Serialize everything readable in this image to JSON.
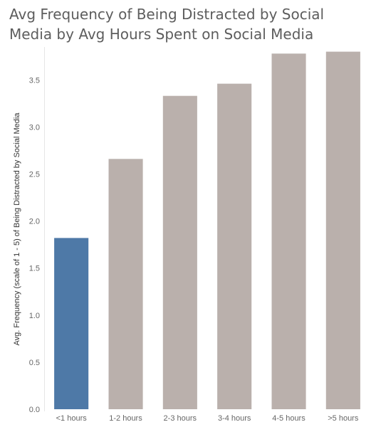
{
  "chart_data": {
    "type": "bar",
    "title": "Avg Frequency of Being Distracted by Social Media by Avg Hours Spent on Social Media",
    "xlabel": "",
    "ylabel": "Avg. Frequency (scale of 1 - 5) of Being Distracted by Social Media",
    "categories": [
      "<1 hours",
      "1-2 hours",
      "2-3 hours",
      "3-4 hours",
      "4-5 hours",
      ">5 hours"
    ],
    "values": [
      1.82,
      2.66,
      3.33,
      3.46,
      3.78,
      3.8
    ],
    "ylim": [
      0,
      3.85
    ],
    "yticks": [
      "0.0",
      "0.5",
      "1.0",
      "1.5",
      "2.0",
      "2.5",
      "3.0",
      "3.5"
    ],
    "colors": {
      "highlight": "#4e79a7",
      "default": "#bab0ac"
    },
    "highlight_index": 0,
    "grid": false
  }
}
